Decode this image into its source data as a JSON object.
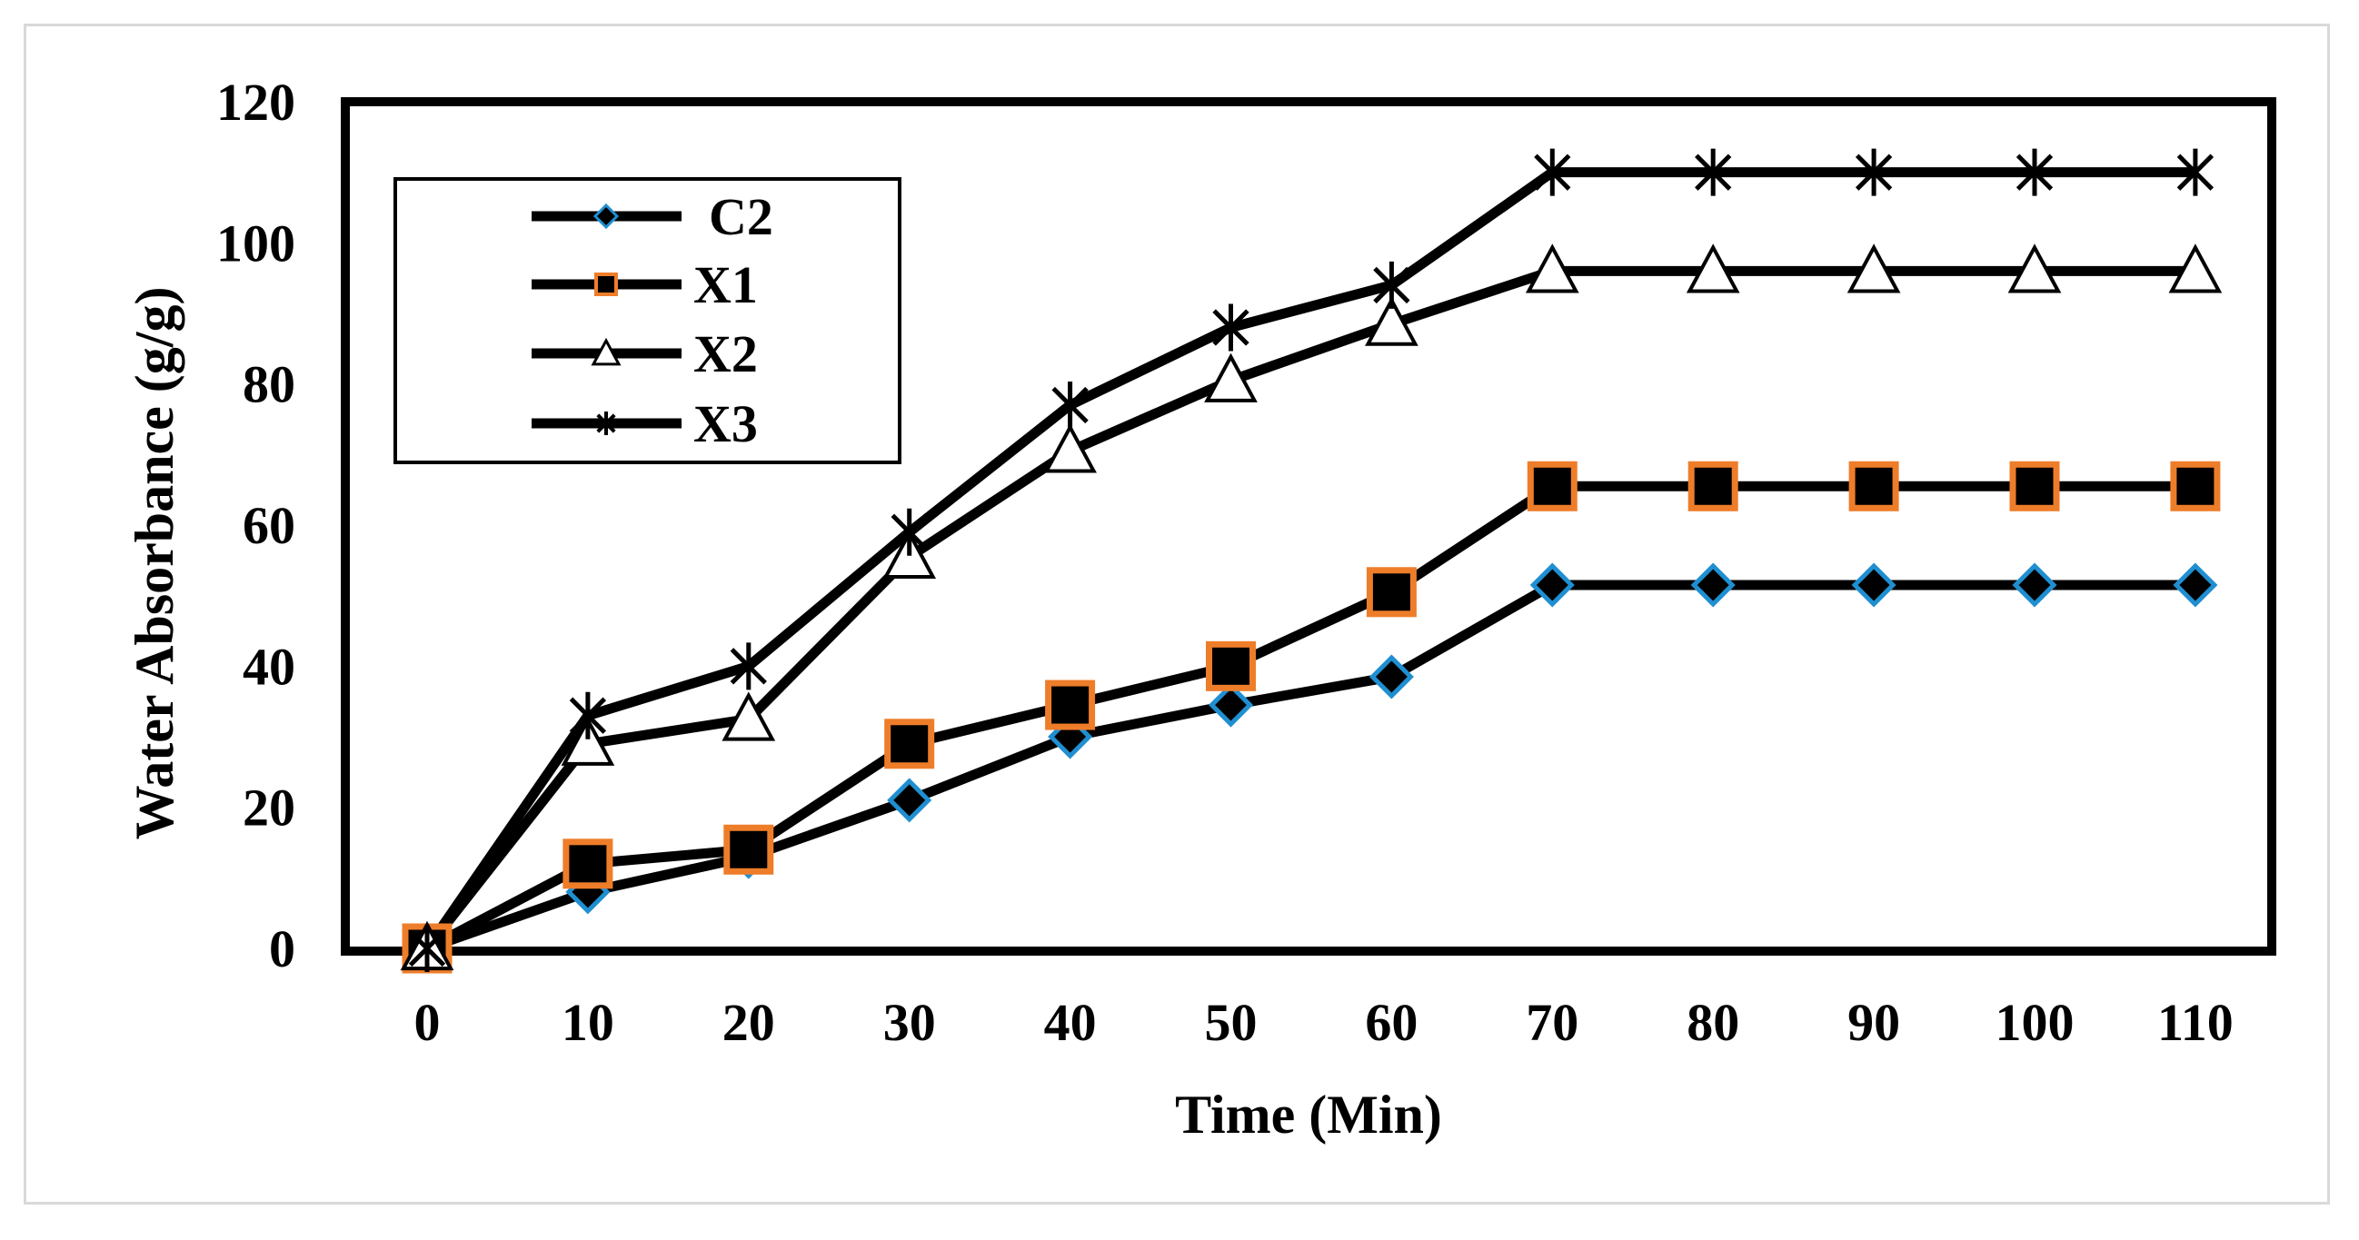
{
  "chart_data": {
    "type": "line",
    "title": "",
    "xlabel": "Time (Min)",
    "ylabel": "Water Absorbance (g/g)",
    "x": [
      0,
      10,
      20,
      30,
      40,
      50,
      60,
      70,
      80,
      90,
      100,
      110
    ],
    "x_tick_labels": [
      "0",
      "10",
      "20",
      "30",
      "40",
      "50",
      "60",
      "70",
      "80",
      "90",
      "100",
      "110"
    ],
    "ylim": [
      0,
      120
    ],
    "y_ticks": [
      0,
      20,
      40,
      60,
      80,
      100,
      120
    ],
    "y_tick_labels": [
      "0",
      "20",
      "40",
      "60",
      "80",
      "100",
      "120"
    ],
    "grid": false,
    "legend_position": "top-left",
    "series": [
      {
        "name": "C2",
        "marker": "diamond",
        "line_color": "#000000",
        "marker_fill": "#000000",
        "marker_edge": "#1f8fd1",
        "values": [
          0,
          8,
          13,
          21,
          30,
          34.5,
          38.5,
          51.5,
          51.5,
          51.5,
          51.5,
          51.5
        ]
      },
      {
        "name": "X1",
        "marker": "square",
        "line_color": "#000000",
        "marker_fill": "#000000",
        "marker_edge": "#ee7d2a",
        "values": [
          0,
          12,
          14,
          29,
          34.5,
          40,
          50.5,
          65.5,
          65.5,
          65.5,
          65.5,
          65.5
        ]
      },
      {
        "name": "X2",
        "marker": "triangle",
        "line_color": "#000000",
        "marker_fill": "#ffffff",
        "marker_edge": "#000000",
        "values": [
          0,
          29,
          32.5,
          55.5,
          70.5,
          80.5,
          88.5,
          96,
          96,
          96,
          96,
          96
        ]
      },
      {
        "name": "X3",
        "marker": "asterisk",
        "line_color": "#000000",
        "marker_fill": "#000000",
        "marker_edge": "#000000",
        "values": [
          0,
          33,
          40,
          59,
          77,
          88,
          94,
          110,
          110,
          110,
          110,
          110
        ]
      }
    ]
  }
}
